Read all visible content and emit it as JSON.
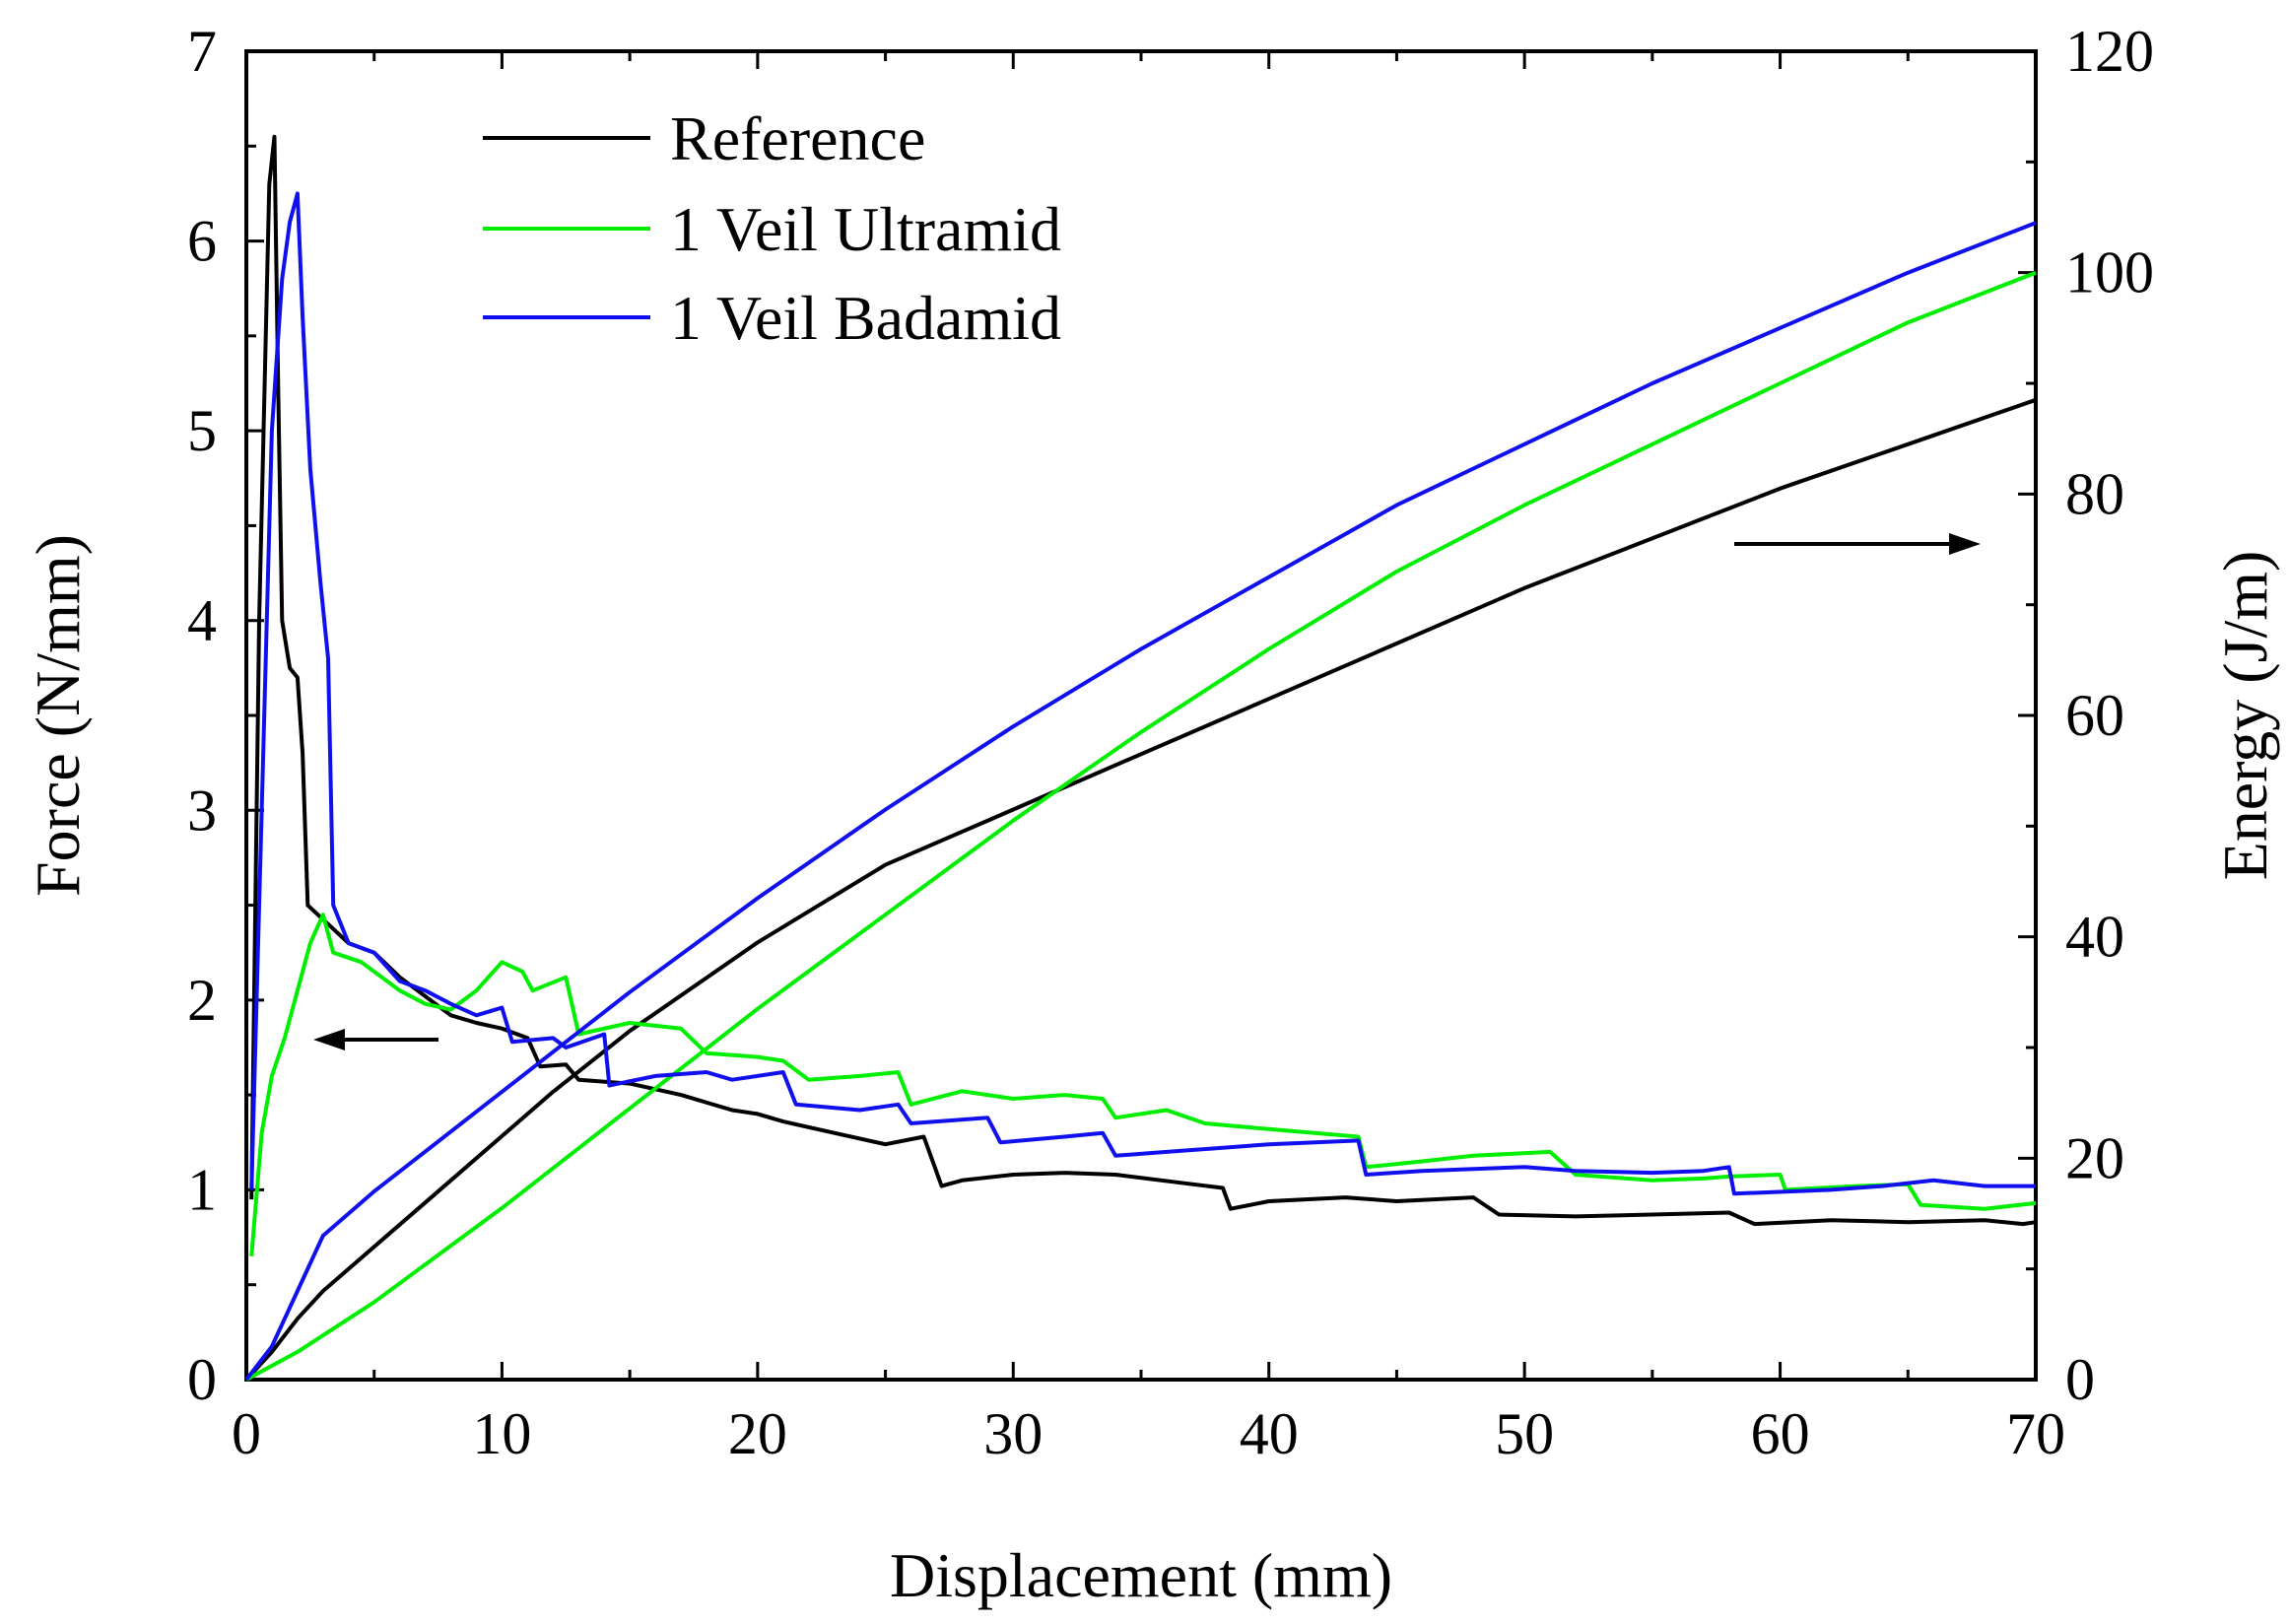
{
  "chart_data": {
    "type": "line",
    "xlabel": "Displacement (mm)",
    "ylabel_left": "Force (N/mm)",
    "ylabel_right": "Energy (J/m)",
    "xlim": [
      0,
      70
    ],
    "ylim_left": [
      0,
      7
    ],
    "ylim_right": [
      0,
      120
    ],
    "x_ticks": [
      "0",
      "10",
      "20",
      "30",
      "40",
      "50",
      "60",
      "70"
    ],
    "y_left_ticks": [
      "0",
      "1",
      "2",
      "3",
      "4",
      "5",
      "6",
      "7"
    ],
    "y_right_ticks": [
      "0",
      "20",
      "40",
      "60",
      "80",
      "100",
      "120"
    ],
    "grid": false,
    "legend_position": "top-left",
    "series": [
      {
        "name": "Reference",
        "color": "#000000",
        "force": [
          [
            0.2,
            0.95
          ],
          [
            0.5,
            4.0
          ],
          [
            0.9,
            6.3
          ],
          [
            1.1,
            6.55
          ],
          [
            1.25,
            5.2
          ],
          [
            1.4,
            4.0
          ],
          [
            1.7,
            3.75
          ],
          [
            2.0,
            3.7
          ],
          [
            2.2,
            3.3
          ],
          [
            2.4,
            2.5
          ],
          [
            2.8,
            2.45
          ],
          [
            3.2,
            2.4
          ],
          [
            4.0,
            2.3
          ],
          [
            5.0,
            2.25
          ],
          [
            6.0,
            2.12
          ],
          [
            7.0,
            2.02
          ],
          [
            8.0,
            1.92
          ],
          [
            9.0,
            1.88
          ],
          [
            10.0,
            1.85
          ],
          [
            11.0,
            1.8
          ],
          [
            11.5,
            1.65
          ],
          [
            12.5,
            1.66
          ],
          [
            13.0,
            1.58
          ],
          [
            15.0,
            1.56
          ],
          [
            17.0,
            1.5
          ],
          [
            19.0,
            1.42
          ],
          [
            20.0,
            1.4
          ],
          [
            21.0,
            1.36
          ],
          [
            23.0,
            1.3
          ],
          [
            25.0,
            1.24
          ],
          [
            26.5,
            1.28
          ],
          [
            27.2,
            1.02
          ],
          [
            28.0,
            1.05
          ],
          [
            30.0,
            1.08
          ],
          [
            32.0,
            1.09
          ],
          [
            34.0,
            1.08
          ],
          [
            37.0,
            1.03
          ],
          [
            38.2,
            1.01
          ],
          [
            38.5,
            0.9
          ],
          [
            40.0,
            0.94
          ],
          [
            43.0,
            0.96
          ],
          [
            45.0,
            0.94
          ],
          [
            48.0,
            0.96
          ],
          [
            49.0,
            0.87
          ],
          [
            52.0,
            0.86
          ],
          [
            55.0,
            0.87
          ],
          [
            58.0,
            0.88
          ],
          [
            59.0,
            0.82
          ],
          [
            62.0,
            0.84
          ],
          [
            65.0,
            0.83
          ],
          [
            68.0,
            0.84
          ],
          [
            69.5,
            0.82
          ],
          [
            70.0,
            0.83
          ]
        ],
        "energy": [
          [
            0.0,
            0.0
          ],
          [
            1.0,
            2.5
          ],
          [
            2.0,
            5.5
          ],
          [
            3.0,
            8.0
          ],
          [
            5.0,
            12.0
          ],
          [
            7.0,
            16.0
          ],
          [
            10.0,
            22.0
          ],
          [
            12.0,
            26.0
          ],
          [
            15.0,
            31.5
          ],
          [
            20.0,
            39.5
          ],
          [
            25.0,
            46.5
          ],
          [
            30.0,
            51.5
          ],
          [
            35.0,
            56.5
          ],
          [
            40.0,
            61.5
          ],
          [
            45.0,
            66.5
          ],
          [
            50.0,
            71.5
          ],
          [
            55.0,
            76.0
          ],
          [
            60.0,
            80.5
          ],
          [
            65.0,
            84.5
          ],
          [
            70.0,
            88.5
          ]
        ]
      },
      {
        "name": "1 Veil Ultramid",
        "color": "#00ee00",
        "force": [
          [
            0.2,
            0.65
          ],
          [
            0.6,
            1.3
          ],
          [
            1.0,
            1.6
          ],
          [
            1.5,
            1.8
          ],
          [
            2.0,
            2.05
          ],
          [
            2.5,
            2.3
          ],
          [
            3.0,
            2.45
          ],
          [
            3.4,
            2.25
          ],
          [
            4.5,
            2.2
          ],
          [
            6.0,
            2.05
          ],
          [
            7.0,
            1.98
          ],
          [
            8.0,
            1.95
          ],
          [
            9.0,
            2.05
          ],
          [
            10.0,
            2.2
          ],
          [
            10.8,
            2.15
          ],
          [
            11.2,
            2.05
          ],
          [
            12.5,
            2.12
          ],
          [
            13.0,
            1.82
          ],
          [
            15.0,
            1.88
          ],
          [
            17.0,
            1.85
          ],
          [
            18.0,
            1.72
          ],
          [
            20.0,
            1.7
          ],
          [
            21.0,
            1.68
          ],
          [
            22.0,
            1.58
          ],
          [
            24.0,
            1.6
          ],
          [
            25.5,
            1.62
          ],
          [
            26.0,
            1.45
          ],
          [
            28.0,
            1.52
          ],
          [
            30.0,
            1.48
          ],
          [
            32.0,
            1.5
          ],
          [
            33.5,
            1.48
          ],
          [
            34.0,
            1.38
          ],
          [
            36.0,
            1.42
          ],
          [
            37.5,
            1.35
          ],
          [
            40.0,
            1.32
          ],
          [
            43.5,
            1.28
          ],
          [
            43.8,
            1.12
          ],
          [
            46.0,
            1.15
          ],
          [
            48.0,
            1.18
          ],
          [
            51.0,
            1.2
          ],
          [
            52.0,
            1.08
          ],
          [
            55.0,
            1.05
          ],
          [
            57.0,
            1.06
          ],
          [
            58.0,
            1.07
          ],
          [
            60.0,
            1.08
          ],
          [
            60.2,
            1.0
          ],
          [
            63.0,
            1.02
          ],
          [
            65.0,
            1.03
          ],
          [
            65.5,
            0.92
          ],
          [
            68.0,
            0.9
          ],
          [
            70.0,
            0.93
          ]
        ],
        "energy": [
          [
            0.0,
            0.0
          ],
          [
            2.0,
            2.5
          ],
          [
            5.0,
            7.0
          ],
          [
            10.0,
            15.5
          ],
          [
            15.0,
            24.5
          ],
          [
            20.0,
            33.5
          ],
          [
            25.0,
            42.0
          ],
          [
            30.0,
            50.5
          ],
          [
            35.0,
            58.5
          ],
          [
            40.0,
            66.0
          ],
          [
            45.0,
            73.0
          ],
          [
            50.0,
            79.0
          ],
          [
            55.0,
            84.5
          ],
          [
            60.0,
            90.0
          ],
          [
            65.0,
            95.5
          ],
          [
            70.0,
            100.0
          ]
        ]
      },
      {
        "name": "1 Veil Badamid",
        "color": "#1010ee",
        "force": [
          [
            0.2,
            1.0
          ],
          [
            0.6,
            3.0
          ],
          [
            1.0,
            5.0
          ],
          [
            1.4,
            5.8
          ],
          [
            1.7,
            6.1
          ],
          [
            2.0,
            6.25
          ],
          [
            2.2,
            5.6
          ],
          [
            2.5,
            4.8
          ],
          [
            2.9,
            4.2
          ],
          [
            3.2,
            3.8
          ],
          [
            3.4,
            2.5
          ],
          [
            4.0,
            2.3
          ],
          [
            5.0,
            2.25
          ],
          [
            6.0,
            2.1
          ],
          [
            7.0,
            2.05
          ],
          [
            8.0,
            1.98
          ],
          [
            9.0,
            1.92
          ],
          [
            10.0,
            1.96
          ],
          [
            10.4,
            1.78
          ],
          [
            12.0,
            1.8
          ],
          [
            12.5,
            1.75
          ],
          [
            14.0,
            1.82
          ],
          [
            14.2,
            1.55
          ],
          [
            16.0,
            1.6
          ],
          [
            18.0,
            1.62
          ],
          [
            19.0,
            1.58
          ],
          [
            21.0,
            1.62
          ],
          [
            21.5,
            1.45
          ],
          [
            24.0,
            1.42
          ],
          [
            25.5,
            1.45
          ],
          [
            26.0,
            1.35
          ],
          [
            29.0,
            1.38
          ],
          [
            29.5,
            1.25
          ],
          [
            32.0,
            1.28
          ],
          [
            33.5,
            1.3
          ],
          [
            34.0,
            1.18
          ],
          [
            36.0,
            1.2
          ],
          [
            38.0,
            1.22
          ],
          [
            40.0,
            1.24
          ],
          [
            43.5,
            1.26
          ],
          [
            43.8,
            1.08
          ],
          [
            46.0,
            1.1
          ],
          [
            50.0,
            1.12
          ],
          [
            52.0,
            1.1
          ],
          [
            55.0,
            1.09
          ],
          [
            57.0,
            1.1
          ],
          [
            58.0,
            1.12
          ],
          [
            58.2,
            0.98
          ],
          [
            62.0,
            1.0
          ],
          [
            64.0,
            1.02
          ],
          [
            66.0,
            1.05
          ],
          [
            68.0,
            1.02
          ],
          [
            70.0,
            1.02
          ]
        ],
        "energy": [
          [
            0.0,
            0.0
          ],
          [
            1.0,
            3.0
          ],
          [
            2.0,
            8.0
          ],
          [
            3.0,
            13.0
          ],
          [
            5.0,
            17.0
          ],
          [
            10.0,
            26.0
          ],
          [
            15.0,
            35.0
          ],
          [
            20.0,
            43.5
          ],
          [
            25.0,
            51.5
          ],
          [
            30.0,
            59.0
          ],
          [
            35.0,
            66.0
          ],
          [
            40.0,
            72.5
          ],
          [
            45.0,
            79.0
          ],
          [
            50.0,
            84.5
          ],
          [
            55.0,
            90.0
          ],
          [
            60.0,
            95.0
          ],
          [
            65.0,
            100.0
          ],
          [
            70.0,
            104.5
          ]
        ]
      }
    ]
  }
}
